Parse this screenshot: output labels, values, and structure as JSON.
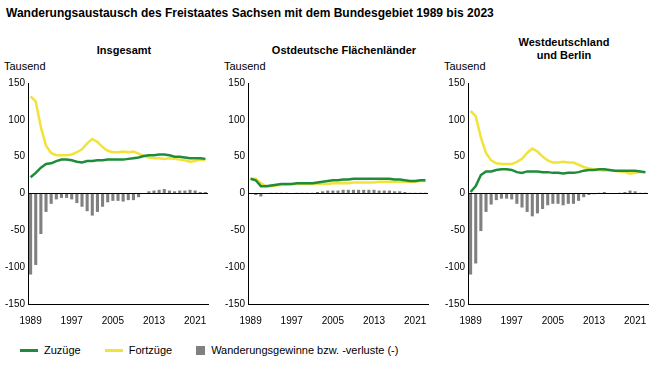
{
  "title": "Wanderungsaustausch des Freistaates Sachsen mit dem Bundesgebiet  1989 bis 2023",
  "legend": "bottom",
  "chart_data": [
    {
      "type": "bar",
      "title": [
        "Insgesamt"
      ],
      "y_label": "Tausend",
      "categories": [
        "1989",
        null,
        null,
        null,
        null,
        null,
        null,
        null,
        "1997",
        null,
        null,
        null,
        null,
        null,
        null,
        null,
        "2005",
        null,
        null,
        null,
        null,
        null,
        null,
        null,
        "2013",
        null,
        null,
        null,
        null,
        null,
        null,
        null,
        "2021",
        null,
        null
      ],
      "ylim": [
        -150,
        150
      ],
      "yticks": [
        -150,
        -100,
        -50,
        0,
        50,
        100,
        150
      ],
      "grid": false,
      "series": [
        {
          "name": "Zuzüge",
          "type": "line",
          "color": "#1e8c3a",
          "values": [
            22,
            28,
            35,
            40,
            41,
            44,
            46,
            46,
            45,
            43,
            42,
            44,
            44,
            45,
            45,
            46,
            46,
            46,
            46,
            47,
            48,
            49,
            51,
            52,
            52,
            53,
            53,
            52,
            50,
            50,
            49,
            48,
            48,
            48,
            47
          ]
        },
        {
          "name": "Fortzüge",
          "type": "line",
          "color": "#f2e33a",
          "values": [
            132,
            125,
            90,
            65,
            55,
            52,
            52,
            52,
            53,
            56,
            60,
            68,
            74,
            70,
            63,
            58,
            56,
            56,
            57,
            56,
            57,
            54,
            51,
            49,
            48,
            48,
            47,
            48,
            47,
            46,
            45,
            43,
            44,
            46,
            45
          ]
        },
        {
          "name": "Wanderungsgewinne bzw. -verluste (-)",
          "type": "bar",
          "color": "#808080",
          "values": [
            -110,
            -97,
            -55,
            -25,
            -14,
            -8,
            -6,
            -6,
            -8,
            -13,
            -18,
            -24,
            -30,
            -25,
            -18,
            -12,
            -10,
            -10,
            -11,
            -9,
            -9,
            -5,
            0,
            3,
            4,
            5,
            6,
            4,
            3,
            4,
            4,
            5,
            4,
            2,
            2
          ]
        }
      ]
    },
    {
      "type": "bar",
      "title": [
        "Ostdeutsche Flächenländer"
      ],
      "y_label": "Tausend",
      "categories": [
        "1989",
        null,
        null,
        null,
        null,
        null,
        null,
        null,
        "1997",
        null,
        null,
        null,
        null,
        null,
        null,
        null,
        "2005",
        null,
        null,
        null,
        null,
        null,
        null,
        null,
        "2013",
        null,
        null,
        null,
        null,
        null,
        null,
        null,
        "2021",
        null,
        null
      ],
      "ylim": [
        -150,
        150
      ],
      "yticks": [
        -150,
        -100,
        -50,
        0,
        50,
        100,
        150
      ],
      "grid": false,
      "series": [
        {
          "name": "Zuzüge",
          "type": "line",
          "color": "#1e8c3a",
          "values": [
            20,
            18,
            10,
            10,
            11,
            12,
            13,
            13,
            13,
            14,
            14,
            14,
            14,
            15,
            16,
            17,
            18,
            18,
            19,
            19,
            20,
            20,
            20,
            20,
            20,
            20,
            20,
            20,
            19,
            19,
            18,
            17,
            17,
            18,
            18
          ]
        },
        {
          "name": "Fortzüge",
          "type": "line",
          "color": "#f2e33a",
          "values": [
            20,
            20,
            14,
            10,
            10,
            11,
            12,
            12,
            13,
            13,
            13,
            13,
            13,
            13,
            13,
            13,
            14,
            14,
            14,
            14,
            15,
            15,
            15,
            15,
            15,
            16,
            16,
            16,
            16,
            16,
            16,
            16,
            16,
            17,
            17
          ]
        },
        {
          "name": "Wanderungsgewinne bzw. -verluste (-)",
          "type": "bar",
          "color": "#808080",
          "values": [
            0,
            -2,
            -4,
            0,
            1,
            1,
            1,
            1,
            0,
            1,
            1,
            1,
            1,
            2,
            3,
            4,
            4,
            4,
            5,
            5,
            5,
            5,
            5,
            5,
            5,
            4,
            4,
            4,
            3,
            3,
            2,
            1,
            1,
            1,
            1
          ]
        }
      ]
    },
    {
      "type": "bar",
      "title": [
        "Westdeutschland",
        "und Berlin"
      ],
      "y_label": "Tausend",
      "categories": [
        "1989",
        null,
        null,
        null,
        null,
        null,
        null,
        null,
        "1997",
        null,
        null,
        null,
        null,
        null,
        null,
        null,
        "2005",
        null,
        null,
        null,
        null,
        null,
        null,
        null,
        "2013",
        null,
        null,
        null,
        null,
        null,
        null,
        null,
        "2021",
        null,
        null
      ],
      "ylim": [
        -150,
        150
      ],
      "yticks": [
        -150,
        -100,
        -50,
        0,
        50,
        100,
        150
      ],
      "grid": false,
      "series": [
        {
          "name": "Zuzüge",
          "type": "line",
          "color": "#1e8c3a",
          "values": [
            2,
            10,
            25,
            30,
            30,
            32,
            33,
            33,
            32,
            29,
            28,
            30,
            30,
            30,
            29,
            29,
            28,
            28,
            27,
            28,
            28,
            29,
            31,
            32,
            32,
            33,
            33,
            32,
            31,
            31,
            31,
            31,
            31,
            30,
            29
          ]
        },
        {
          "name": "Fortzüge",
          "type": "line",
          "color": "#f2e33a",
          "values": [
            112,
            105,
            76,
            55,
            45,
            41,
            40,
            40,
            40,
            43,
            47,
            55,
            61,
            57,
            50,
            45,
            42,
            42,
            43,
            42,
            42,
            39,
            36,
            34,
            33,
            32,
            31,
            32,
            31,
            30,
            29,
            27,
            28,
            29,
            28
          ]
        },
        {
          "name": "Wanderungsgewinne bzw. -verluste (-)",
          "type": "bar",
          "color": "#808080",
          "values": [
            -110,
            -95,
            -51,
            -25,
            -15,
            -9,
            -7,
            -7,
            -8,
            -14,
            -19,
            -25,
            -31,
            -27,
            -21,
            -16,
            -14,
            -14,
            -16,
            -14,
            -14,
            -10,
            -5,
            -2,
            -1,
            1,
            2,
            0,
            0,
            1,
            2,
            4,
            3,
            1,
            1
          ]
        }
      ]
    }
  ]
}
